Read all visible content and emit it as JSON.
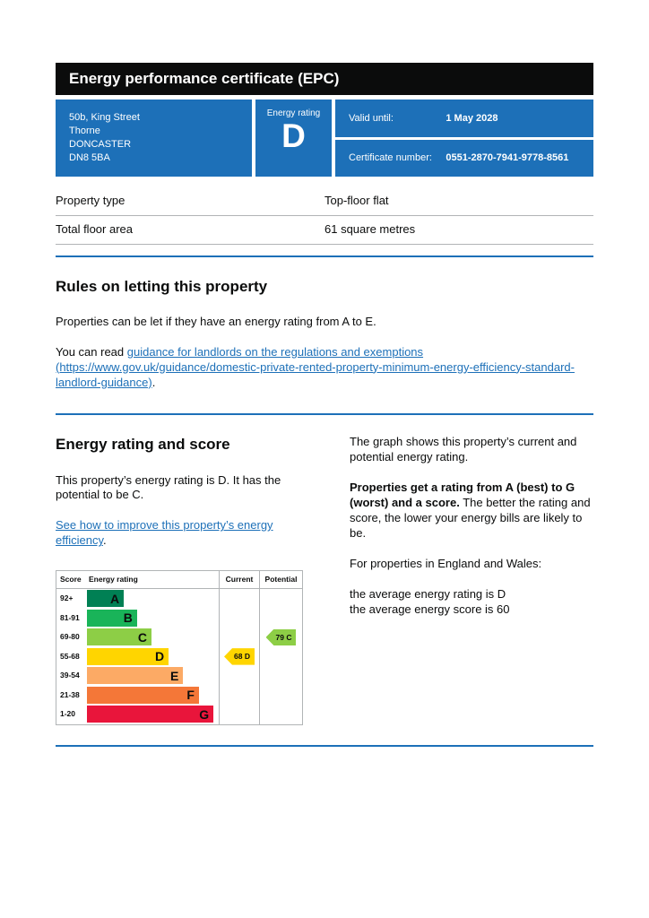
{
  "header": {
    "title": "Energy performance certificate (EPC)"
  },
  "summary": {
    "address_lines": [
      "50b, King Street",
      "Thorne",
      "DONCASTER",
      "DN8 5BA"
    ],
    "energy_rating_label": "Energy rating",
    "energy_rating": "D",
    "valid_until_label": "Valid until:",
    "valid_until": "1 May 2028",
    "certificate_number_label": "Certificate number:",
    "certificate_number": "0551-2870-7941-9778-8561"
  },
  "property_details": {
    "rows": [
      {
        "label": "Property type",
        "value": "Top-floor flat"
      },
      {
        "label": "Total floor area",
        "value": "61 square metres"
      }
    ]
  },
  "rules_section": {
    "heading": "Rules on letting this property",
    "para1": "Properties can be let if they have an energy rating from A to E.",
    "para2_prefix": "You can read ",
    "link_text": "guidance for landlords on the regulations and exemptions (https://www.gov.uk/guidance/domestic-private-rented-property-minimum-energy-efficiency-standard-landlord-guidance)",
    "para2_suffix": "."
  },
  "rating_section": {
    "heading": "Energy rating and score",
    "para1": "This property’s energy rating is D. It has the potential to be C.",
    "link_text": "See how to improve this property’s energy efficiency",
    "link_suffix": ".",
    "right_para1": "The graph shows this property’s current and potential energy rating.",
    "right_para2_bold": "Properties get a rating from A (best) to G (worst) and a score.",
    "right_para2_rest": " The better the rating and score, the lower your energy bills are likely to be.",
    "right_para3": "For properties in England and Wales:",
    "right_para4_line1": "the average energy rating is D",
    "right_para4_line2": "the average energy score is 60"
  },
  "chart_data": {
    "type": "epc-rating-bars",
    "headers": {
      "score": "Score",
      "rating": "Energy rating",
      "current": "Current",
      "potential": "Potential"
    },
    "bands": [
      {
        "score": "92+",
        "letter": "A",
        "color": "#008054",
        "width_pct": 28
      },
      {
        "score": "81-91",
        "letter": "B",
        "color": "#19b459",
        "width_pct": 38
      },
      {
        "score": "69-80",
        "letter": "C",
        "color": "#8dce46",
        "width_pct": 49
      },
      {
        "score": "55-68",
        "letter": "D",
        "color": "#ffd500",
        "width_pct": 62
      },
      {
        "score": "39-54",
        "letter": "E",
        "color": "#fcaa65",
        "width_pct": 73
      },
      {
        "score": "21-38",
        "letter": "F",
        "color": "#f47738",
        "width_pct": 85
      },
      {
        "score": "1-20",
        "letter": "G",
        "color": "#e9153b",
        "width_pct": 96
      }
    ],
    "current": {
      "score": 68,
      "letter": "D",
      "label": "68 D",
      "band_index": 3,
      "color": "#ffd500"
    },
    "potential": {
      "score": 79,
      "letter": "C",
      "label": "79 C",
      "band_index": 2,
      "color": "#8dce46"
    }
  },
  "colors": {
    "govuk_blue": "#1d70b8",
    "banner_black": "#0b0c0c",
    "border_grey": "#b1b4b6"
  }
}
